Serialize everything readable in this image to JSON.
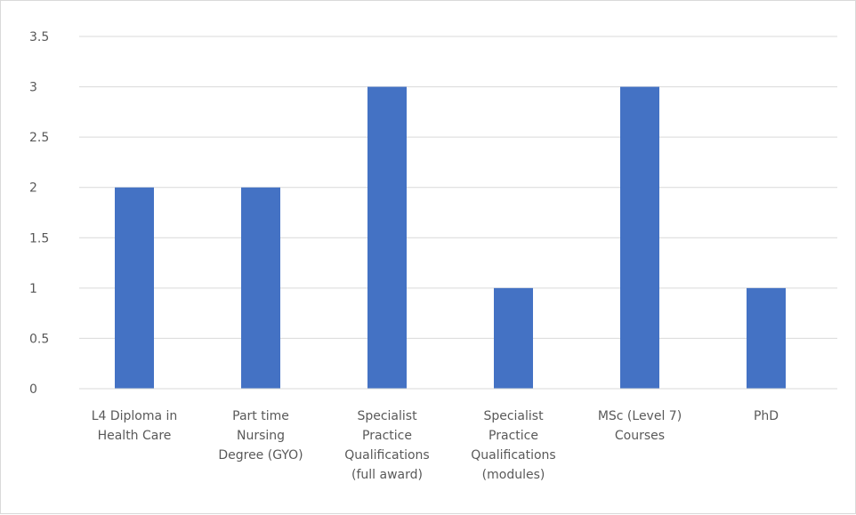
{
  "chart_data": {
    "type": "bar",
    "categories": [
      [
        "L4 Diploma in",
        "Health Care"
      ],
      [
        "Part time",
        "Nursing",
        "Degree (GYO)"
      ],
      [
        "Specialist",
        "Practice",
        "Qualifications",
        "(full award)"
      ],
      [
        "Specialist",
        "Practice",
        "Qualifications",
        "(modules)"
      ],
      [
        "MSc (Level 7)",
        "Courses"
      ],
      [
        "PhD"
      ]
    ],
    "values": [
      2,
      2,
      3,
      1,
      3,
      1
    ],
    "yticks": [
      "0",
      "0.5",
      "1",
      "1.5",
      "2",
      "2.5",
      "3",
      "3.5"
    ],
    "ylim": [
      0,
      3.5
    ],
    "title": "",
    "xlabel": "",
    "ylabel": "",
    "grid": true,
    "legend": "none",
    "bar_color": "#4472c4",
    "grid_color": "#d9d9d9",
    "text_color": "#595959"
  }
}
